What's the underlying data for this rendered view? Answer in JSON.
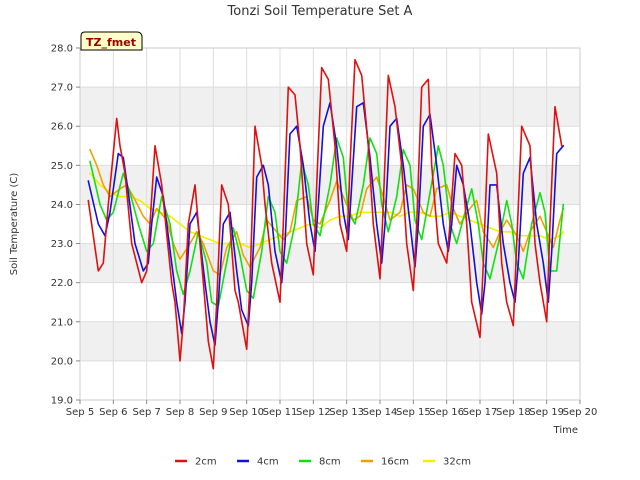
{
  "chart_data": {
    "type": "line",
    "title": "Tonzi Soil Temperature Set A",
    "xlabel": "Time",
    "ylabel": "Soil Temperature (C)",
    "ylim": [
      19.0,
      28.0
    ],
    "xlim": [
      5,
      20
    ],
    "y_ticks": [
      19.0,
      20.0,
      21.0,
      22.0,
      23.0,
      24.0,
      25.0,
      26.0,
      27.0,
      28.0
    ],
    "y_tick_labels": [
      "19.0",
      "20.0",
      "21.0",
      "22.0",
      "23.0",
      "24.0",
      "25.0",
      "26.0",
      "27.0",
      "28.0"
    ],
    "x_ticks": [
      5,
      6,
      7,
      8,
      9,
      10,
      11,
      12,
      13,
      14,
      15,
      16,
      17,
      18,
      19,
      20
    ],
    "x_tick_labels": [
      "Sep 5",
      "Sep 6",
      "Sep 7",
      "Sep 8",
      "Sep 9",
      "Sep 10",
      "Sep 11",
      "Sep 12",
      "Sep 13",
      "Sep 14",
      "Sep 15",
      "Sep 16",
      "Sep 17",
      "Sep 18",
      "Sep 19",
      "Sep 20"
    ],
    "grid": true,
    "legend_position": "bottom",
    "tag": "TZ_fmet",
    "series": [
      {
        "name": "2cm",
        "color": "#e01010",
        "x": [
          5.25,
          5.55,
          5.7,
          5.85,
          6.1,
          6.2,
          6.35,
          6.55,
          6.85,
          7.0,
          7.1,
          7.25,
          7.45,
          7.75,
          7.85,
          8.0,
          8.1,
          8.25,
          8.45,
          8.75,
          8.85,
          9.0,
          9.1,
          9.25,
          9.45,
          9.65,
          9.75,
          10.0,
          10.1,
          10.25,
          10.45,
          10.55,
          10.75,
          11.0,
          11.1,
          11.25,
          11.45,
          11.6,
          11.8,
          12.0,
          12.1,
          12.25,
          12.45,
          12.65,
          12.8,
          13.0,
          13.1,
          13.25,
          13.45,
          13.65,
          13.8,
          14.0,
          14.1,
          14.25,
          14.45,
          14.65,
          14.8,
          15.0,
          15.1,
          15.25,
          15.45,
          15.55,
          15.75,
          16.0,
          16.1,
          16.25,
          16.45,
          16.6,
          16.75,
          17.0,
          17.1,
          17.25,
          17.5,
          17.65,
          17.8,
          18.0,
          18.1,
          18.25,
          18.5,
          18.65,
          18.8,
          19.0,
          19.1,
          19.25,
          19.45
        ],
        "values": [
          24.1,
          22.3,
          22.5,
          24.0,
          26.2,
          25.5,
          24.8,
          23.0,
          22.0,
          22.3,
          23.5,
          25.5,
          24.5,
          22.0,
          21.5,
          20.0,
          21.0,
          23.5,
          24.5,
          21.5,
          20.5,
          19.8,
          21.5,
          24.5,
          24.0,
          21.8,
          21.5,
          20.3,
          22.0,
          26.0,
          25.0,
          24.0,
          22.5,
          21.5,
          23.5,
          27.0,
          26.8,
          25.5,
          23.0,
          22.2,
          24.5,
          27.5,
          27.2,
          25.5,
          23.5,
          22.8,
          25.0,
          27.7,
          27.3,
          25.5,
          23.5,
          22.1,
          24.0,
          27.3,
          26.5,
          25.0,
          23.0,
          21.8,
          23.5,
          27.0,
          27.2,
          25.0,
          23.0,
          22.5,
          23.5,
          25.3,
          25.0,
          23.5,
          21.5,
          20.6,
          22.5,
          25.8,
          24.8,
          22.5,
          21.5,
          20.9,
          23.0,
          26.0,
          25.5,
          23.0,
          22.0,
          21.0,
          23.5,
          26.5,
          25.5
        ]
      },
      {
        "name": "4cm",
        "color": "#1010e0",
        "x": [
          5.25,
          5.55,
          5.75,
          5.9,
          6.15,
          6.3,
          6.45,
          6.65,
          6.9,
          7.05,
          7.15,
          7.3,
          7.5,
          7.75,
          7.9,
          8.05,
          8.15,
          8.3,
          8.5,
          8.75,
          8.9,
          9.05,
          9.15,
          9.3,
          9.5,
          9.7,
          9.85,
          10.05,
          10.15,
          10.3,
          10.5,
          10.65,
          10.85,
          11.05,
          11.15,
          11.3,
          11.5,
          11.7,
          11.9,
          12.05,
          12.15,
          12.3,
          12.5,
          12.7,
          12.9,
          13.05,
          13.15,
          13.3,
          13.5,
          13.7,
          13.9,
          14.05,
          14.15,
          14.3,
          14.5,
          14.7,
          14.9,
          15.05,
          15.15,
          15.3,
          15.5,
          15.7,
          15.9,
          16.05,
          16.15,
          16.3,
          16.5,
          16.7,
          16.9,
          17.05,
          17.15,
          17.3,
          17.5,
          17.7,
          17.9,
          18.05,
          18.15,
          18.3,
          18.5,
          18.7,
          18.9,
          19.05,
          19.15,
          19.3,
          19.5
        ],
        "values": [
          24.6,
          23.5,
          23.2,
          23.8,
          25.3,
          25.2,
          24.3,
          23.0,
          22.3,
          22.5,
          23.5,
          24.7,
          24.2,
          22.5,
          21.5,
          20.7,
          21.5,
          23.5,
          23.8,
          22.0,
          21.0,
          20.4,
          21.5,
          23.5,
          23.8,
          22.3,
          21.3,
          20.9,
          22.0,
          24.7,
          25.0,
          24.5,
          22.8,
          22.0,
          23.0,
          25.8,
          26.0,
          25.0,
          23.5,
          22.8,
          24.0,
          26.0,
          26.6,
          25.5,
          23.8,
          23.1,
          24.5,
          26.5,
          26.6,
          25.2,
          23.5,
          22.5,
          23.5,
          26.0,
          26.2,
          25.0,
          23.5,
          22.4,
          23.5,
          26.0,
          26.3,
          25.0,
          23.5,
          22.8,
          23.5,
          25.0,
          24.5,
          23.5,
          22.0,
          21.2,
          22.0,
          24.5,
          24.5,
          23.0,
          22.0,
          21.5,
          22.5,
          24.8,
          25.2,
          23.5,
          22.5,
          21.5,
          22.8,
          25.3,
          25.5
        ]
      },
      {
        "name": "8cm",
        "color": "#10e010",
        "x": [
          5.3,
          5.6,
          5.8,
          6.0,
          6.3,
          6.5,
          6.75,
          7.0,
          7.2,
          7.45,
          7.7,
          7.9,
          8.1,
          8.3,
          8.55,
          8.8,
          8.95,
          9.15,
          9.35,
          9.6,
          9.8,
          10.0,
          10.2,
          10.45,
          10.65,
          10.85,
          11.0,
          11.2,
          11.45,
          11.65,
          11.85,
          12.0,
          12.2,
          12.5,
          12.7,
          12.9,
          13.05,
          13.25,
          13.5,
          13.7,
          13.9,
          14.05,
          14.25,
          14.5,
          14.7,
          14.9,
          15.05,
          15.25,
          15.5,
          15.75,
          15.9,
          16.1,
          16.3,
          16.55,
          16.75,
          16.95,
          17.1,
          17.3,
          17.55,
          17.8,
          17.95,
          18.1,
          18.3,
          18.55,
          18.8,
          18.95,
          19.1,
          19.3,
          19.5
        ],
        "values": [
          25.1,
          24.0,
          23.6,
          23.8,
          24.8,
          24.3,
          23.5,
          22.8,
          23.0,
          24.2,
          23.5,
          22.3,
          21.7,
          22.3,
          23.3,
          22.5,
          21.5,
          21.4,
          22.3,
          23.4,
          22.7,
          21.8,
          21.6,
          22.8,
          24.2,
          23.8,
          22.8,
          22.5,
          23.5,
          25.1,
          24.5,
          23.5,
          23.2,
          24.5,
          25.7,
          25.2,
          23.8,
          23.5,
          24.5,
          25.7,
          25.3,
          24.0,
          23.3,
          24.2,
          25.4,
          25.0,
          23.6,
          23.1,
          24.3,
          25.5,
          25.0,
          23.5,
          23.0,
          23.8,
          24.4,
          23.5,
          22.5,
          22.1,
          23.0,
          24.1,
          23.5,
          22.5,
          22.1,
          23.5,
          24.3,
          23.8,
          22.3,
          22.3,
          24.0
        ]
      },
      {
        "name": "16cm",
        "color": "#f0a000",
        "x": [
          5.3,
          5.5,
          5.7,
          5.9,
          6.2,
          6.4,
          6.6,
          6.9,
          7.1,
          7.3,
          7.6,
          7.8,
          8.0,
          8.3,
          8.5,
          8.7,
          9.0,
          9.2,
          9.4,
          9.7,
          9.9,
          10.1,
          10.4,
          10.6,
          10.8,
          11.1,
          11.3,
          11.5,
          11.8,
          12.0,
          12.2,
          12.5,
          12.7,
          12.9,
          13.2,
          13.4,
          13.6,
          13.9,
          14.1,
          14.3,
          14.6,
          14.8,
          15.0,
          15.3,
          15.5,
          15.7,
          16.0,
          16.2,
          16.4,
          16.7,
          16.9,
          17.1,
          17.4,
          17.6,
          17.8,
          18.1,
          18.3,
          18.5,
          18.8,
          19.0,
          19.2,
          19.4,
          19.5
        ],
        "values": [
          25.4,
          25.0,
          24.5,
          24.2,
          24.4,
          24.5,
          24.2,
          23.7,
          23.5,
          23.9,
          23.6,
          23.0,
          22.6,
          23.0,
          23.3,
          23.0,
          22.3,
          22.2,
          22.9,
          23.3,
          22.7,
          22.4,
          22.9,
          23.6,
          23.4,
          23.1,
          23.3,
          24.1,
          24.2,
          23.6,
          23.5,
          24.1,
          24.6,
          24.2,
          23.6,
          23.7,
          24.4,
          24.7,
          24.2,
          23.6,
          23.8,
          24.5,
          24.4,
          23.8,
          23.7,
          24.4,
          24.5,
          23.9,
          23.5,
          23.9,
          24.1,
          23.3,
          22.9,
          23.3,
          23.6,
          23.2,
          22.8,
          23.3,
          23.7,
          23.3,
          22.9,
          23.6,
          23.9
        ]
      },
      {
        "name": "32cm",
        "color": "#f0f000",
        "x": [
          5.3,
          5.6,
          5.9,
          6.2,
          6.5,
          6.8,
          7.1,
          7.4,
          7.7,
          8.0,
          8.3,
          8.6,
          8.9,
          9.2,
          9.5,
          9.8,
          10.1,
          10.4,
          10.7,
          11.0,
          11.3,
          11.6,
          11.9,
          12.2,
          12.5,
          12.8,
          13.1,
          13.4,
          13.7,
          14.0,
          14.3,
          14.6,
          14.9,
          15.2,
          15.5,
          15.8,
          16.1,
          16.4,
          16.7,
          17.0,
          17.3,
          17.6,
          17.9,
          18.2,
          18.5,
          18.8,
          19.1,
          19.4,
          19.5
        ],
        "values": [
          24.8,
          24.5,
          24.3,
          24.2,
          24.2,
          24.1,
          23.9,
          23.8,
          23.7,
          23.5,
          23.3,
          23.2,
          23.1,
          23.0,
          23.0,
          23.0,
          22.9,
          23.0,
          23.1,
          23.2,
          23.3,
          23.4,
          23.5,
          23.4,
          23.6,
          23.7,
          23.7,
          23.8,
          23.8,
          23.8,
          23.8,
          23.7,
          23.8,
          23.8,
          23.7,
          23.7,
          23.8,
          23.7,
          23.6,
          23.5,
          23.4,
          23.3,
          23.3,
          23.2,
          23.2,
          23.2,
          23.1,
          23.2,
          23.3
        ]
      }
    ]
  }
}
